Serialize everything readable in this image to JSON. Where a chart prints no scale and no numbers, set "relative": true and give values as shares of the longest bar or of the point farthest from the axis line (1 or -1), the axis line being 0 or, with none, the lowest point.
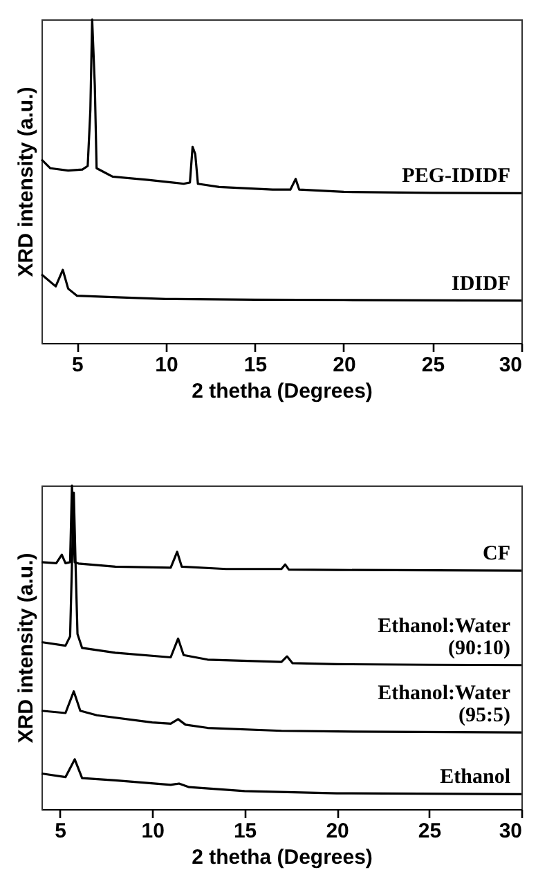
{
  "chart_data": [
    {
      "type": "line",
      "relative": true,
      "xlabel": "2 thetha (Degrees)",
      "ylabel": "XRD intensity (a.u.)",
      "xlim": [
        3,
        30
      ],
      "xticks": [
        5,
        10,
        15,
        20,
        25,
        30
      ],
      "series": [
        {
          "name": "PEG-IDIDF",
          "color": "#000000",
          "x": [
            3,
            3.5,
            4.5,
            5.3,
            5.6,
            5.75,
            5.85,
            6.0,
            6.1,
            7,
            9,
            11,
            11.35,
            11.5,
            11.65,
            11.8,
            13,
            16,
            17.0,
            17.3,
            17.5,
            20,
            25,
            30
          ],
          "values": [
            0.567,
            0.54,
            0.533,
            0.536,
            0.547,
            0.72,
            1,
            0.796,
            0.54,
            0.514,
            0.504,
            0.492,
            0.496,
            0.606,
            0.584,
            0.492,
            0.482,
            0.474,
            0.474,
            0.507,
            0.474,
            0.467,
            0.464,
            0.463
          ]
        },
        {
          "name": "IDIDF",
          "color": "#000000",
          "x": [
            3,
            3.8,
            4.2,
            4.5,
            5,
            7,
            10,
            15,
            20,
            30
          ],
          "values": [
            0.212,
            0.175,
            0.226,
            0.168,
            0.146,
            0.142,
            0.136,
            0.134,
            0.133,
            0.131
          ]
        }
      ]
    },
    {
      "type": "line",
      "relative": true,
      "xlabel": "2 thetha (Degrees)",
      "ylabel": "XRD intensity (a.u.)",
      "xlim": [
        4,
        30
      ],
      "xticks": [
        5,
        10,
        15,
        20,
        25,
        30
      ],
      "series": [
        {
          "name": "CF",
          "color": "#000000",
          "x": [
            4,
            4.8,
            5.1,
            5.3,
            5.55,
            5.65,
            5.8,
            6,
            8,
            11,
            11.35,
            11.6,
            14,
            17.0,
            17.2,
            17.4,
            20,
            30
          ],
          "values": [
            0.763,
            0.76,
            0.786,
            0.76,
            0.763,
            1,
            0.763,
            0.759,
            0.749,
            0.746,
            0.795,
            0.749,
            0.742,
            0.742,
            0.756,
            0.74,
            0.739,
            0.737
          ]
        },
        {
          "name": "Ethanol:Water (90:10)",
          "color": "#000000",
          "x": [
            4,
            5.3,
            5.55,
            5.75,
            5.85,
            5.95,
            6.2,
            8,
            11,
            11.4,
            11.7,
            13,
            17.0,
            17.3,
            17.6,
            20,
            25,
            30
          ],
          "values": [
            0.516,
            0.505,
            0.534,
            0.978,
            0.749,
            0.541,
            0.498,
            0.483,
            0.469,
            0.527,
            0.476,
            0.462,
            0.455,
            0.472,
            0.451,
            0.448,
            0.446,
            0.445
          ]
        },
        {
          "name": "Ethanol:Water (95:5)",
          "color": "#000000",
          "x": [
            4,
            5.3,
            5.75,
            6.1,
            7,
            10,
            11,
            11.4,
            11.8,
            13,
            17,
            20,
            30
          ],
          "values": [
            0.304,
            0.297,
            0.364,
            0.304,
            0.29,
            0.268,
            0.264,
            0.278,
            0.261,
            0.251,
            0.242,
            0.24,
            0.237
          ]
        },
        {
          "name": "Ethanol",
          "color": "#000000",
          "x": [
            4,
            5.3,
            5.8,
            6.2,
            8,
            11,
            11.45,
            12,
            15,
            20,
            30
          ],
          "values": [
            0.11,
            0.099,
            0.154,
            0.096,
            0.089,
            0.075,
            0.079,
            0.068,
            0.056,
            0.049,
            0.046
          ]
        }
      ]
    }
  ]
}
